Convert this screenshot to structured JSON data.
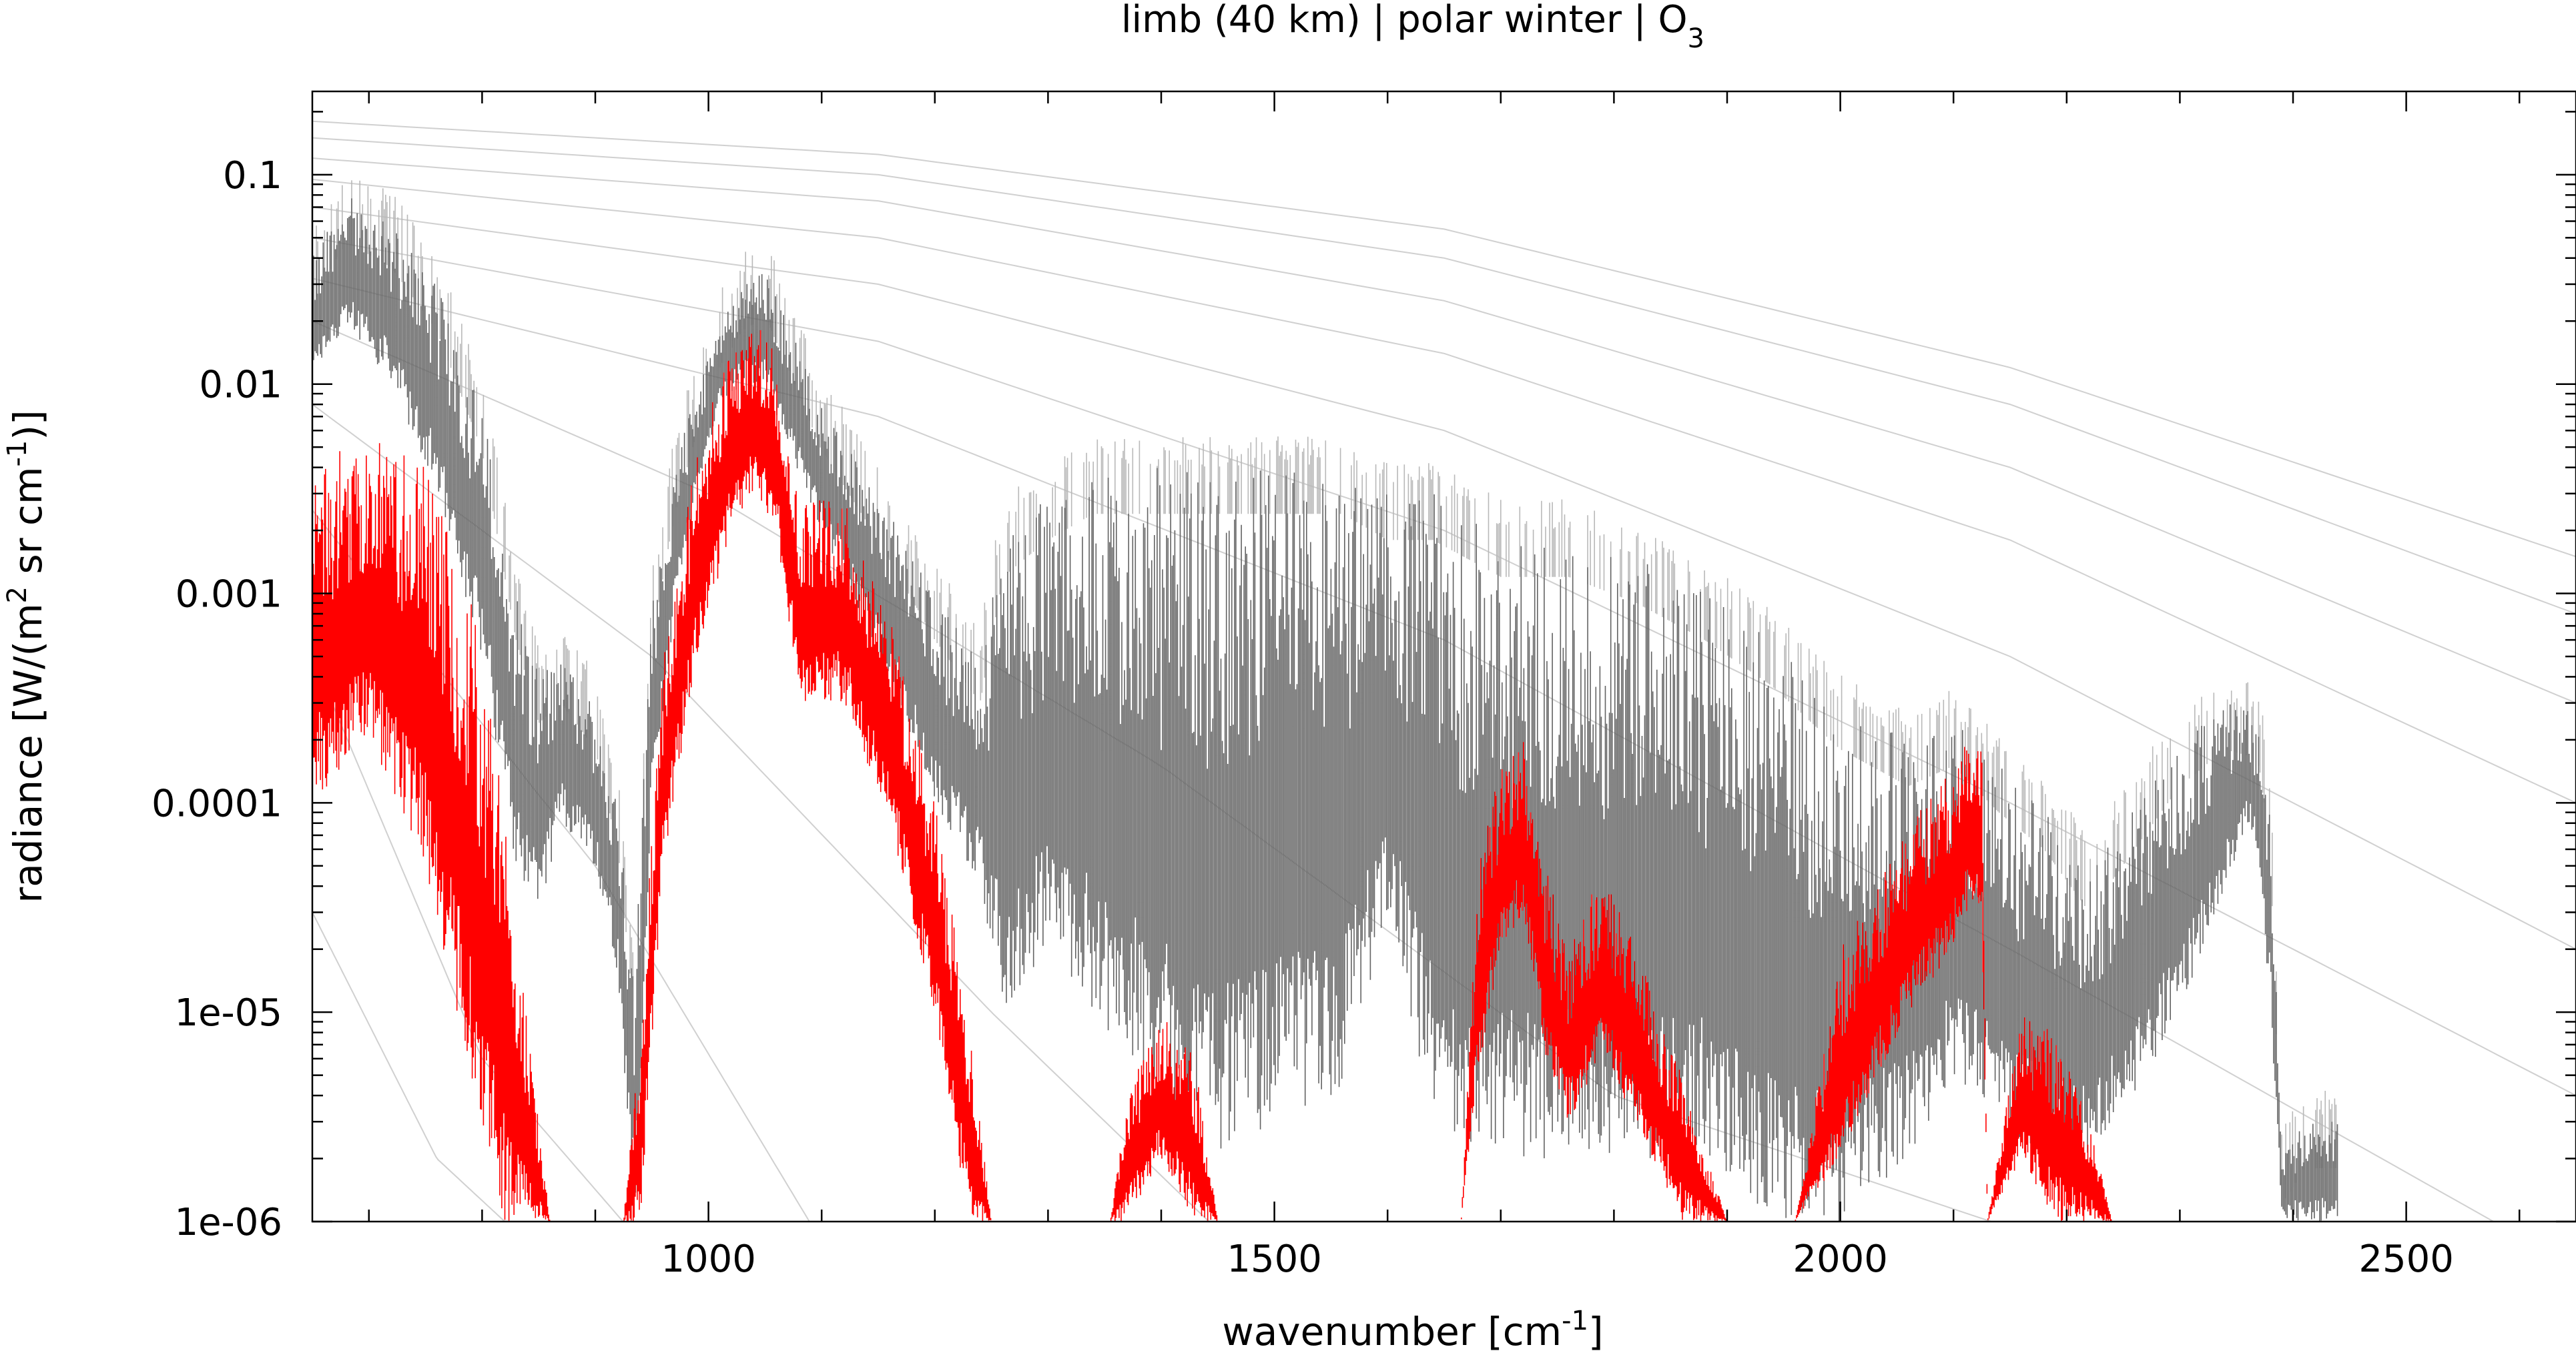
{
  "chart_data": {
    "type": "line",
    "title": "limb (40 km) | polar winter | O",
    "title_subscript": "3",
    "xlabel_pre": "wavenumber [cm",
    "xlabel_sup": "-1",
    "xlabel_post": "]",
    "ylabel_pre": "radiance [W/(m",
    "ylabel_sup1": "2",
    "ylabel_mid": " sr cm",
    "ylabel_sup2": "-1",
    "ylabel_post": ")]",
    "xlim": [
      650,
      2650
    ],
    "ylim": [
      1e-06,
      0.25
    ],
    "yscale": "log",
    "x_ticks": [
      1000,
      1500,
      2000,
      2500
    ],
    "x_tick_labels": [
      "1000",
      "1500",
      "2000",
      "2500"
    ],
    "y_ticks": [
      0.1,
      0.01,
      0.001,
      0.0001,
      1e-05,
      1e-06
    ],
    "y_tick_labels": [
      "0.1",
      "0.01",
      "0.001",
      "0.0001",
      "1e-05",
      "1e-06"
    ],
    "grid": false,
    "colors": {
      "total": "#636363",
      "total_light": "#b8b8b8",
      "o3": "#ff0000",
      "reference": "#d0d0d0"
    },
    "series": [
      {
        "role": "total",
        "x": [
          650,
          680,
          720,
          760,
          800,
          830,
          850,
          870,
          900,
          920,
          935,
          950,
          970,
          990,
          1010,
          1030,
          1050,
          1070,
          1100,
          1150,
          1200,
          1240,
          1260,
          1300,
          1340,
          1400,
          1450,
          1500,
          1560,
          1600,
          1640,
          1700,
          1760,
          1820,
          1880,
          1940,
          2000,
          2060,
          2100,
          2140,
          2180,
          2220,
          2260,
          2300,
          2340,
          2360,
          2370,
          2380,
          2390,
          2410,
          2440
        ],
        "top": [
          0.04,
          0.08,
          0.06,
          0.03,
          0.008,
          0.001,
          0.0004,
          0.0005,
          0.0003,
          0.0001,
          1.5e-05,
          0.001,
          0.004,
          0.01,
          0.02,
          0.03,
          0.035,
          0.02,
          0.008,
          0.003,
          0.001,
          0.0005,
          0.002,
          0.003,
          0.004,
          0.004,
          0.004,
          0.004,
          0.004,
          0.003,
          0.003,
          0.002,
          0.002,
          0.0015,
          0.001,
          0.0006,
          0.0003,
          0.0002,
          0.00025,
          0.00015,
          0.0001,
          5e-05,
          0.0001,
          0.0002,
          0.0003,
          0.00028,
          0.00025,
          0.0001,
          2e-06,
          3e-06,
          3e-06
        ],
        "bottom": [
          0.01,
          0.02,
          0.01,
          0.003,
          0.0005,
          5e-05,
          3e-05,
          8e-05,
          5e-05,
          1.5e-05,
          1e-06,
          0.0001,
          0.0008,
          0.003,
          0.008,
          0.01,
          0.01,
          0.005,
          0.002,
          0.0005,
          0.0001,
          4e-05,
          1e-05,
          2e-05,
          1e-05,
          4e-06,
          2e-06,
          3e-06,
          4e-06,
          3e-05,
          3e-06,
          2e-06,
          2e-06,
          2e-06,
          2e-06,
          1e-06,
          1e-06,
          2e-06,
          5e-06,
          3e-06,
          2e-06,
          2e-06,
          4e-06,
          1e-05,
          4e-05,
          8e-05,
          5e-05,
          1e-05,
          1e-06,
          1e-06,
          1e-06
        ]
      },
      {
        "role": "O3",
        "x": [
          650,
          700,
          750,
          790,
          820,
          845,
          860,
          925,
          940,
          960,
          990,
          1020,
          1040,
          1060,
          1080,
          1120,
          1160,
          1200,
          1230,
          1250,
          1355,
          1370,
          1400,
          1430,
          1450,
          1665,
          1680,
          1700,
          1720,
          1740,
          1760,
          1790,
          1820,
          1860,
          1900,
          1960,
          2000,
          2060,
          2100,
          2110,
          2125,
          2130,
          2160,
          2190,
          2220,
          2240
        ],
        "top": [
          0.004,
          0.006,
          0.004,
          0.001,
          0.0001,
          5e-06,
          1e-06,
          1e-06,
          1e-05,
          0.0005,
          0.005,
          0.015,
          0.02,
          0.015,
          0.003,
          0.003,
          0.0008,
          0.0001,
          1e-05,
          1e-06,
          1e-06,
          4e-06,
          1e-05,
          6e-06,
          1e-06,
          1e-06,
          5e-05,
          0.00015,
          0.0002,
          5e-05,
          2e-05,
          5e-05,
          2e-05,
          5e-06,
          1e-06,
          1e-06,
          2e-05,
          8e-05,
          0.00015,
          0.0002,
          0.0002,
          1e-06,
          1e-05,
          8e-06,
          3e-06,
          1e-06
        ],
        "bottom": [
          0.0001,
          0.0002,
          5e-05,
          5e-06,
          1e-06,
          1e-06,
          1e-06,
          1e-06,
          1e-06,
          5e-05,
          0.0005,
          0.002,
          0.003,
          0.002,
          0.0003,
          0.0003,
          8e-05,
          1e-05,
          1e-06,
          1e-06,
          1e-06,
          1e-06,
          2e-06,
          1e-06,
          1e-06,
          1e-06,
          5e-06,
          2e-05,
          3e-05,
          6e-06,
          3e-06,
          6e-06,
          3e-06,
          1e-06,
          1e-06,
          1e-06,
          2e-06,
          1e-05,
          2e-05,
          3e-05,
          3e-05,
          1e-06,
          2e-06,
          1e-06,
          1e-06,
          1e-06
        ]
      }
    ],
    "reference_curves": [
      {
        "x": [
          650,
          1150,
          1650,
          2150,
          2650
        ],
        "y": [
          0.18,
          0.125,
          0.055,
          0.012,
          0.0015
        ]
      },
      {
        "x": [
          650,
          1150,
          1650,
          2150,
          2650
        ],
        "y": [
          0.15,
          0.1,
          0.04,
          0.008,
          0.0008
        ]
      },
      {
        "x": [
          650,
          1150,
          1650,
          2150,
          2650
        ],
        "y": [
          0.12,
          0.075,
          0.025,
          0.004,
          0.0003
        ]
      },
      {
        "x": [
          650,
          1150,
          1650,
          2150,
          2650
        ],
        "y": [
          0.095,
          0.05,
          0.014,
          0.0018,
          0.0001
        ]
      },
      {
        "x": [
          650,
          1150,
          1650,
          2150,
          2650
        ],
        "y": [
          0.07,
          0.03,
          0.006,
          0.0005,
          2e-05
        ]
      },
      {
        "x": [
          650,
          1150,
          1650,
          2150,
          2650
        ],
        "y": [
          0.05,
          0.016,
          0.002,
          0.0001,
          4e-06
        ]
      },
      {
        "x": [
          650,
          1150,
          1650,
          2150,
          2650
        ],
        "y": [
          0.032,
          0.007,
          0.0006,
          2e-05,
          6e-07
        ]
      },
      {
        "x": [
          650,
          1000,
          1400,
          1800,
          2300
        ],
        "y": [
          0.02,
          0.003,
          0.00015,
          4e-06,
          5e-07
        ]
      },
      {
        "x": [
          650,
          950,
          1250,
          1500
        ],
        "y": [
          0.008,
          0.0005,
          1e-05,
          5e-07
        ]
      },
      {
        "x": [
          650,
          900,
          1100
        ],
        "y": [
          0.0025,
          5e-05,
          8e-07
        ]
      },
      {
        "x": [
          650,
          800,
          960
        ],
        "y": [
          0.0005,
          6e-06,
          6e-07
        ]
      },
      {
        "x": [
          650,
          760,
          880
        ],
        "y": [
          3e-05,
          2e-06,
          5e-07
        ]
      }
    ]
  }
}
